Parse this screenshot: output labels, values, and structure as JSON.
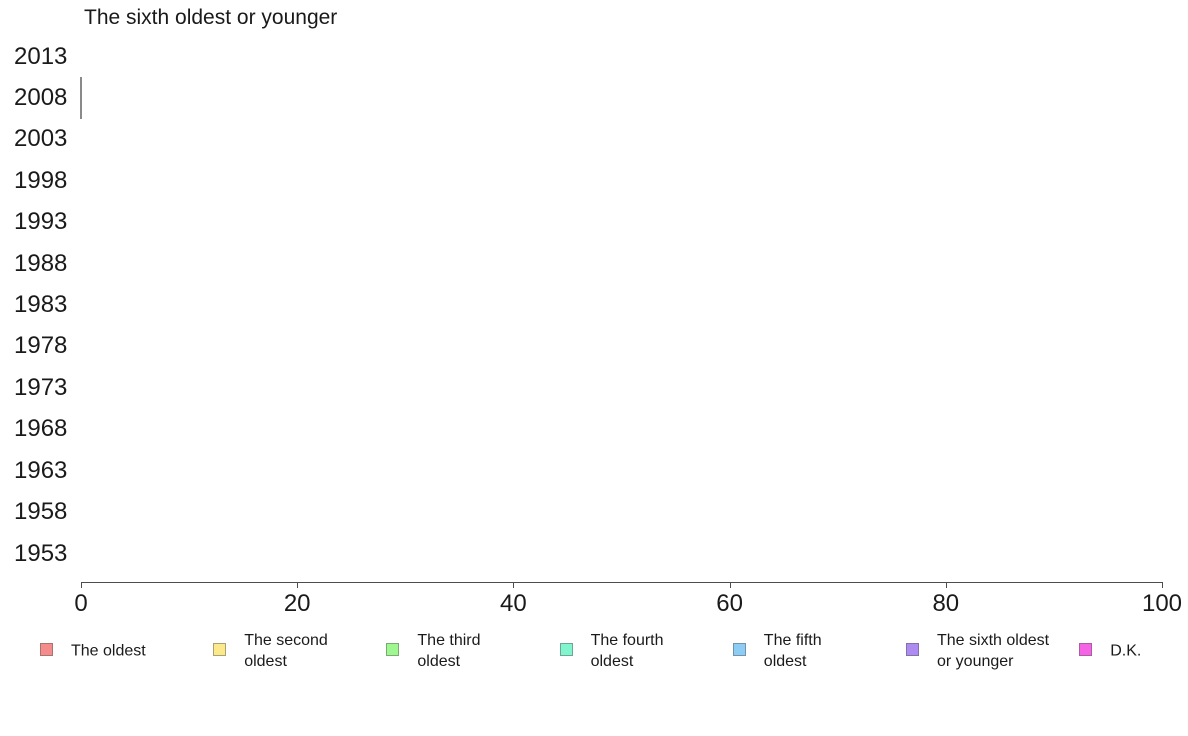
{
  "chart_data": {
    "type": "bar",
    "orientation": "horizontal",
    "title": "The sixth oldest or younger",
    "categories": [
      "2013",
      "2008",
      "2003",
      "1998",
      "1993",
      "1988",
      "1983",
      "1978",
      "1973",
      "1968",
      "1963",
      "1958",
      "1953"
    ],
    "xlabel": "",
    "ylabel": "",
    "xlim": [
      0,
      100
    ],
    "x_ticks": [
      0,
      20,
      40,
      60,
      80,
      100
    ],
    "grid": false,
    "legend_position": "bottom",
    "series": [
      {
        "name": "The oldest",
        "color": "#f58c8c",
        "values": [
          0,
          0,
          0,
          0,
          0,
          0,
          0,
          0,
          0,
          0,
          0,
          0,
          0
        ]
      },
      {
        "name": "The second oldest",
        "color": "#fbe98c",
        "values": [
          0,
          0,
          0,
          0,
          0,
          0,
          0,
          0,
          0,
          0,
          0,
          0,
          0
        ]
      },
      {
        "name": "The third oldest",
        "color": "#9ef78f",
        "values": [
          0,
          0,
          0,
          0,
          0,
          0,
          0,
          0,
          0,
          0,
          0,
          0,
          0
        ]
      },
      {
        "name": "The fourth oldest",
        "color": "#80f5ce",
        "values": [
          0,
          0,
          0,
          0,
          0,
          0,
          0,
          0,
          0,
          0,
          0,
          0,
          0
        ]
      },
      {
        "name": "The fifth oldest",
        "color": "#8cccf5",
        "values": [
          0,
          0,
          0,
          0,
          0,
          0,
          0,
          0,
          0,
          0,
          0,
          0,
          0
        ]
      },
      {
        "name": "The sixth oldest or younger",
        "color": "#ad8bf0",
        "values": [
          0,
          0,
          0,
          0,
          0,
          0,
          0,
          0,
          0,
          0,
          0,
          0,
          0
        ]
      },
      {
        "name": "D.K.",
        "color": "#f564e4",
        "values": [
          0,
          0,
          0,
          0,
          0,
          0,
          0,
          0,
          0,
          0,
          0,
          0,
          0
        ]
      }
    ],
    "annotations": [
      "Zero-width bar outline visible at category 2008 at x = 0"
    ]
  },
  "legend": {
    "items": [
      {
        "id": "the-oldest",
        "lines": [
          "The oldest"
        ],
        "color": "#f58c8c"
      },
      {
        "id": "the-second-oldest",
        "lines": [
          "The second",
          "oldest"
        ],
        "color": "#fbe98c"
      },
      {
        "id": "the-third-oldest",
        "lines": [
          "The third",
          "oldest"
        ],
        "color": "#9ef78f"
      },
      {
        "id": "the-fourth-oldest",
        "lines": [
          "The fourth",
          "oldest"
        ],
        "color": "#80f5ce"
      },
      {
        "id": "the-fifth-oldest",
        "lines": [
          "The fifth",
          "oldest"
        ],
        "color": "#8cccf5"
      },
      {
        "id": "the-sixth-oldest-or-younger",
        "lines": [
          "The sixth oldest",
          "or younger"
        ],
        "color": "#ad8bf0"
      },
      {
        "id": "dk",
        "lines": [
          "D.K."
        ],
        "color": "#f564e4"
      }
    ]
  },
  "colors": {
    "background": "#ffffff",
    "text": "#1a1a1a",
    "axis": "#4d4d4d",
    "zero_bar_outline": "#8a8a8a",
    "swatch_border": "rgba(90,90,90,0.5)"
  }
}
